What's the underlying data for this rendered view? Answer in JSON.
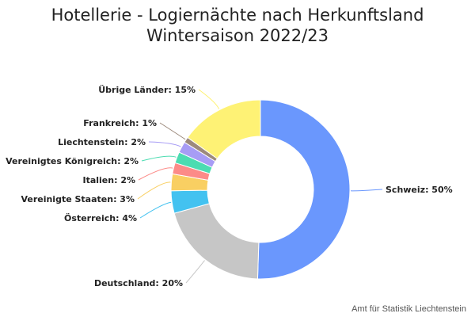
{
  "chart_data": {
    "type": "pie",
    "title_lines": [
      "Hotellerie - Logiernächte nach Herkunftsland",
      "Wintersaison 2022/23"
    ],
    "categories": [
      "Schweiz",
      "Deutschland",
      "Österreich",
      "Vereinigte Staaten",
      "Italien",
      "Vereinigtes Königreich",
      "Liechtenstein",
      "Frankreich",
      "Übrige Länder"
    ],
    "values": [
      50,
      20,
      4,
      3,
      2,
      2,
      2,
      1,
      15
    ],
    "labels": [
      "Schweiz: 50%",
      "Deutschland: 20%",
      "Österreich: 4%",
      "Vereinigte Staaten: 3%",
      "Italien: 2%",
      "Vereinigtes Königreich: 2%",
      "Liechtenstein: 2%",
      "Frankreich: 1%",
      "Übrige Länder: 15%"
    ],
    "colors": [
      "#6a97fd",
      "#c6c6c6",
      "#43c2f0",
      "#f9cf62",
      "#fc8b88",
      "#4cdcb1",
      "#a79cf5",
      "#9c8a7c",
      "#fef275"
    ],
    "donut": true,
    "start_angle_deg": 0,
    "direction": "clockwise"
  },
  "credit": "Amt für Statistik Liechtenstein"
}
